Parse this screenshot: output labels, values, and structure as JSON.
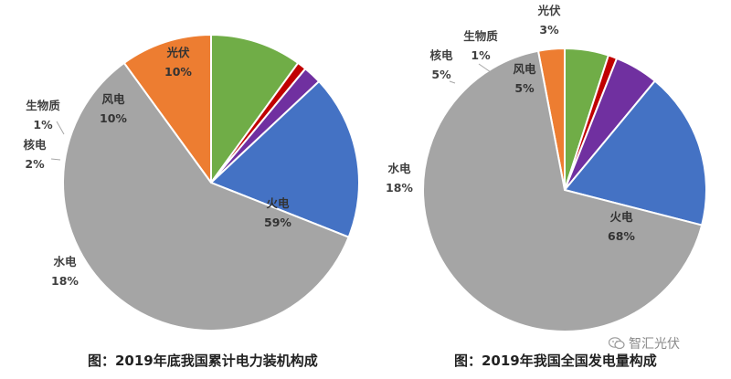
{
  "chart_data": [
    {
      "type": "pie",
      "title": "图：2019年底我国累计电力装机构成",
      "slices": [
        {
          "name": "光伏",
          "value": 10,
          "label": "10%",
          "color": "#ed7d31"
        },
        {
          "name": "风电",
          "value": 10,
          "label": "10%",
          "color": "#70ad47"
        },
        {
          "name": "生物质",
          "value": 1,
          "label": "1%",
          "color": "#c00000"
        },
        {
          "name": "核电",
          "value": 2,
          "label": "2%",
          "color": "#7030a0"
        },
        {
          "name": "水电",
          "value": 18,
          "label": "18%",
          "color": "#4472c4"
        },
        {
          "name": "火电",
          "value": 59,
          "label": "59%",
          "color": "#a5a5a5"
        }
      ]
    },
    {
      "type": "pie",
      "title": "图：2019年我国全国发电量构成",
      "slices": [
        {
          "name": "光伏",
          "value": 3,
          "label": "3%",
          "color": "#ed7d31"
        },
        {
          "name": "风电",
          "value": 5,
          "label": "5%",
          "color": "#70ad47"
        },
        {
          "name": "生物质",
          "value": 1,
          "label": "1%",
          "color": "#c00000"
        },
        {
          "name": "核电",
          "value": 5,
          "label": "5%",
          "color": "#7030a0"
        },
        {
          "name": "水电",
          "value": 18,
          "label": "18%",
          "color": "#4472c4"
        },
        {
          "name": "火电",
          "value": 68,
          "label": "68%",
          "color": "#a5a5a5"
        }
      ]
    }
  ],
  "captions": {
    "left": "图：2019年底我国累计电力装机构成",
    "right": "图：2019年我国全国发电量构成"
  },
  "watermark": {
    "text": "智汇光伏",
    "icon": "wechat-icon"
  }
}
